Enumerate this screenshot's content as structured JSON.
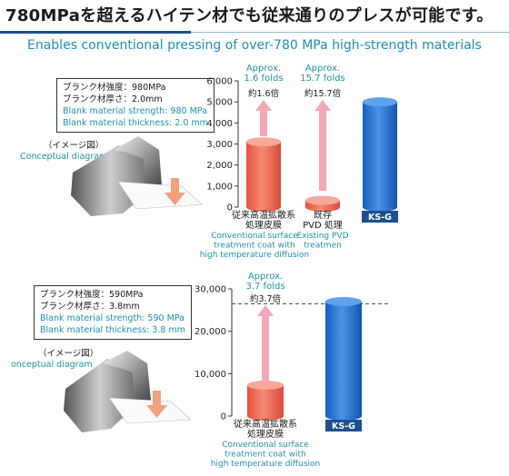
{
  "header": {
    "title": "780MPaを超えるハイテン材でも従来通りのプレスが可能です。",
    "subtitle": "Enables conventional pressing of  over-780 MPa high-strength materials"
  },
  "panels": [
    {
      "info": {
        "strength_jp": "ブランク材強度：980MPa",
        "thickness_jp": "ブランク材厚さ：2.0mm",
        "strength_en": "Blank material strength: 980 MPa",
        "thickness_en": "Blank material thickness: 2.0 mm"
      },
      "caption": {
        "jp": "（イメージ図）",
        "en": "Conceptual diagram"
      }
    },
    {
      "info": {
        "strength_jp": "ブランク材強度：590MPa",
        "thickness_jp": "ブランク材厚さ：3.8mm",
        "strength_en": "Blank material strength: 590 MPa",
        "thickness_en": "Blank material thickness: 3.8 mm"
      },
      "caption": {
        "jp": "（イメージ図）",
        "en": "onceptual diagram"
      }
    }
  ],
  "colors": {
    "accent": "#1e8fb0",
    "red_bar": "#ee6a55",
    "blue_bar": "#1f6fd0",
    "arrow": "#f2a9b5",
    "header_line": "#1f4f8f"
  },
  "chart_data": [
    {
      "type": "bar",
      "categories": [
        "従来高温拡散系 処理皮膜",
        "既存 PVD 処理",
        "KS-G"
      ],
      "category_lines": [
        [
          "従来高温拡散系",
          "処理皮膜"
        ],
        [
          "既存",
          "PVD 処理"
        ],
        [
          "KS-G"
        ]
      ],
      "category_en": [
        [
          "Conventional surface",
          "treatment coat with",
          "high temperature diffusion"
        ],
        [
          "Existing PVD",
          "treatmen"
        ],
        []
      ],
      "values": [
        3100,
        320,
        5000
      ],
      "ylim": [
        0,
        6000
      ],
      "yticks": [
        "0",
        "1,000",
        "2,000",
        "3,000",
        "4,000",
        "5,000",
        "6,000"
      ],
      "annotations": [
        {
          "en": [
            "Approx.",
            "1.6 folds"
          ],
          "jp": "約1.6倍"
        },
        {
          "en": [
            "Approx.",
            "15.7 folds"
          ],
          "jp": "約15.7倍"
        }
      ],
      "grid": false
    },
    {
      "type": "bar",
      "categories": [
        "従来高温拡散系 処理皮膜",
        "KS-G"
      ],
      "category_lines": [
        [
          "従来高温拡散系",
          "処理皮膜"
        ],
        [
          "KS-G"
        ]
      ],
      "category_en": [
        [
          "Conventional surface",
          "treatment coat with",
          "high temperature diffusion"
        ],
        []
      ],
      "values": [
        7300,
        27000
      ],
      "ylim": [
        0,
        30000
      ],
      "yticks": [
        "0",
        "10,000",
        "20,000",
        "30,000"
      ],
      "annotations": [
        {
          "en": [
            "Approx.",
            "3.7 folds"
          ],
          "jp": "約3.7倍"
        }
      ],
      "reference_line": 26500,
      "grid": false
    }
  ]
}
